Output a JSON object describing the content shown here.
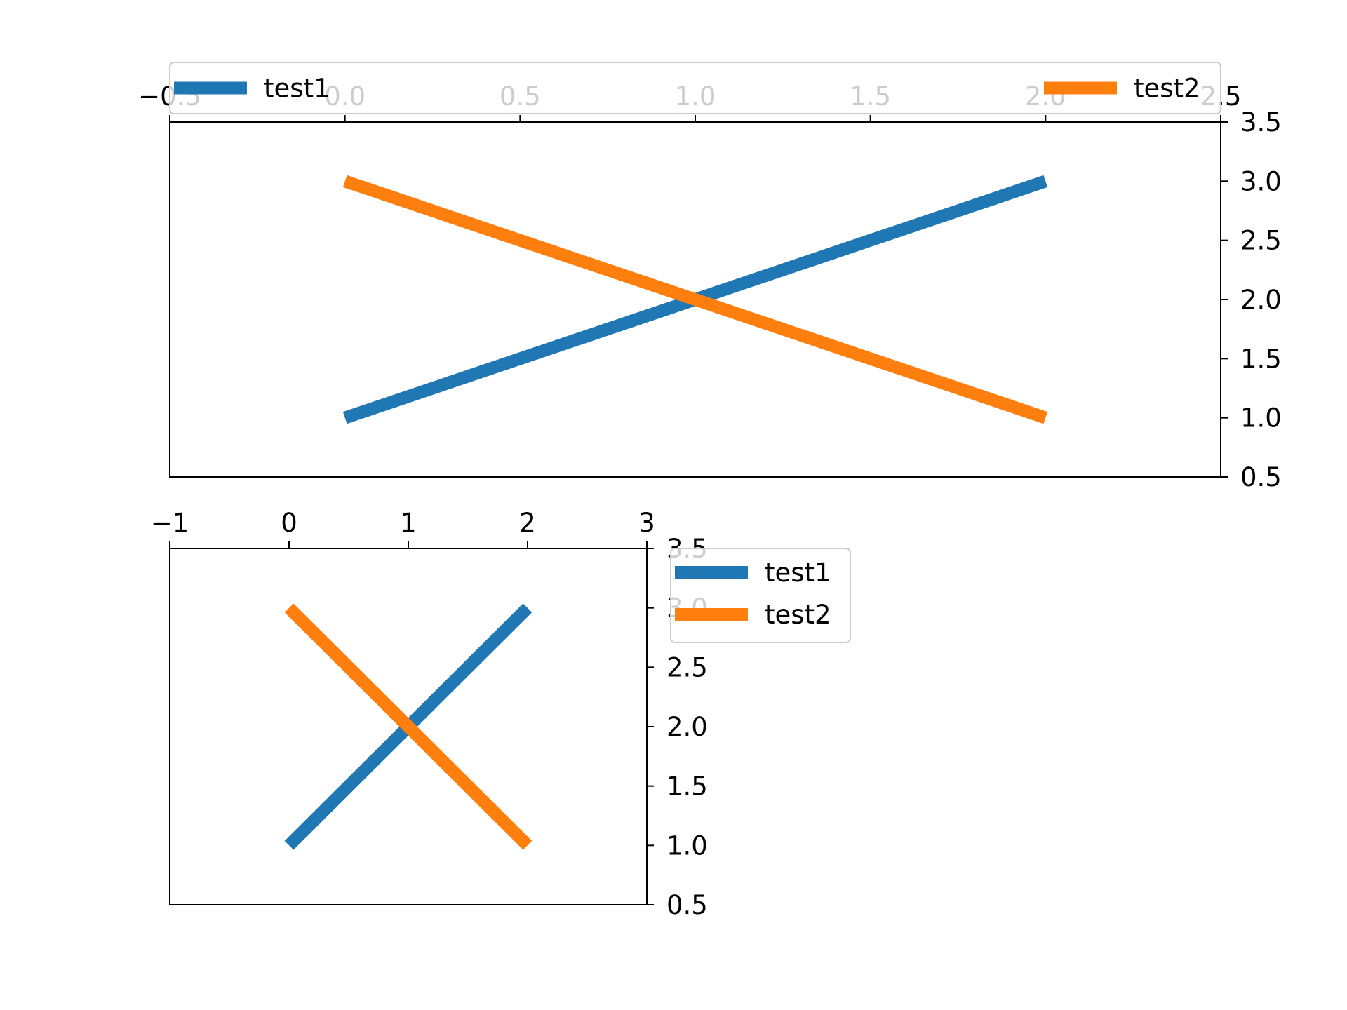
{
  "chart_data": [
    {
      "type": "line",
      "title": "",
      "xlabel": "",
      "ylabel": "",
      "xlim": [
        -0.5,
        2.5
      ],
      "ylim": [
        0.5,
        3.5
      ],
      "x_axis_position": "top",
      "y_axis_position": "right",
      "xticks": [
        "−0.5",
        "0.0",
        "0.5",
        "1.0",
        "1.5",
        "2.0",
        "2.5"
      ],
      "xtick_values": [
        -0.5,
        0.0,
        0.5,
        1.0,
        1.5,
        2.0,
        2.5
      ],
      "yticks": [
        "0.5",
        "1.0",
        "1.5",
        "2.0",
        "2.5",
        "3.0",
        "3.5"
      ],
      "ytick_values": [
        0.5,
        1.0,
        1.5,
        2.0,
        2.5,
        3.0,
        3.5
      ],
      "grid": false,
      "legend": "top, spanning full width (expanded)",
      "series": [
        {
          "name": "test1",
          "color": "#1f77b4",
          "x": [
            0,
            1,
            2
          ],
          "y": [
            1,
            2,
            3
          ]
        },
        {
          "name": "test2",
          "color": "#ff7f0e",
          "x": [
            0,
            1,
            2
          ],
          "y": [
            3,
            2,
            1
          ]
        }
      ]
    },
    {
      "type": "line",
      "title": "",
      "xlabel": "",
      "ylabel": "",
      "xlim": [
        -1,
        3
      ],
      "ylim": [
        0.5,
        3.5
      ],
      "x_axis_position": "top",
      "y_axis_position": "right",
      "xticks": [
        "−1",
        "0",
        "1",
        "2",
        "3"
      ],
      "xtick_values": [
        -1,
        0,
        1,
        2,
        3
      ],
      "yticks": [
        "0.5",
        "1.0",
        "1.5",
        "2.0",
        "2.5",
        "3.0",
        "3.5"
      ],
      "ytick_values": [
        0.5,
        1.0,
        1.5,
        2.0,
        2.5,
        3.0,
        3.5
      ],
      "grid": false,
      "legend": "upper right, outside axes",
      "series": [
        {
          "name": "test1",
          "color": "#1f77b4",
          "x": [
            0,
            1,
            2
          ],
          "y": [
            1,
            2,
            3
          ]
        },
        {
          "name": "test2",
          "color": "#ff7f0e",
          "x": [
            0,
            1,
            2
          ],
          "y": [
            3,
            2,
            1
          ]
        }
      ]
    }
  ]
}
